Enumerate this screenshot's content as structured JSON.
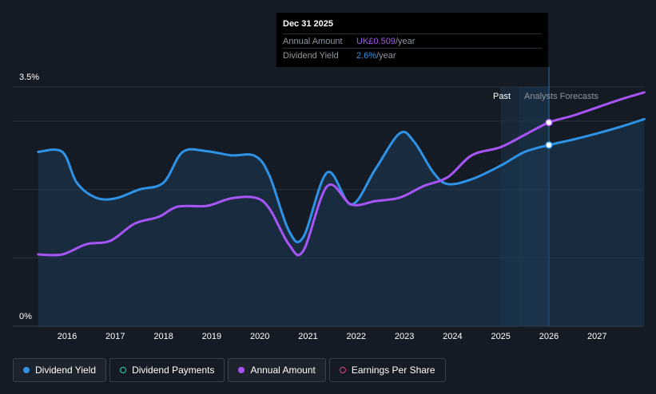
{
  "chart_data": {
    "type": "line",
    "y_axis": {
      "labels": [
        "3.5%",
        "0%"
      ],
      "ylim": [
        0,
        3.5
      ],
      "unit": "%"
    },
    "x_axis": {
      "ticks": [
        "2016",
        "2017",
        "2018",
        "2019",
        "2020",
        "2021",
        "2022",
        "2023",
        "2024",
        "2025",
        "2026",
        "2027"
      ]
    },
    "regions": {
      "past_label": "Past",
      "forecast_label": "Analysts Forecasts",
      "forecast_start": 2025.38
    },
    "series": [
      {
        "name": "Dividend Yield",
        "color": "#2e93e6",
        "points": [
          [
            2015.4,
            2.55
          ],
          [
            2015.9,
            2.55
          ],
          [
            2016.2,
            2.1
          ],
          [
            2016.6,
            1.88
          ],
          [
            2017.0,
            1.87
          ],
          [
            2017.5,
            2.0
          ],
          [
            2018.0,
            2.1
          ],
          [
            2018.4,
            2.55
          ],
          [
            2018.9,
            2.56
          ],
          [
            2019.4,
            2.5
          ],
          [
            2019.9,
            2.49
          ],
          [
            2020.2,
            2.2
          ],
          [
            2020.6,
            1.4
          ],
          [
            2020.9,
            1.3
          ],
          [
            2021.4,
            2.25
          ],
          [
            2021.9,
            1.78
          ],
          [
            2022.4,
            2.3
          ],
          [
            2022.9,
            2.82
          ],
          [
            2023.2,
            2.7
          ],
          [
            2023.6,
            2.25
          ],
          [
            2023.9,
            2.08
          ],
          [
            2024.4,
            2.15
          ],
          [
            2025.0,
            2.35
          ],
          [
            2025.5,
            2.55
          ],
          [
            2026.0,
            2.65
          ],
          [
            2026.5,
            2.73
          ],
          [
            2027.0,
            2.82
          ],
          [
            2027.5,
            2.92
          ],
          [
            2027.98,
            3.03
          ]
        ]
      },
      {
        "name": "Annual Amount",
        "color": "#a855f7",
        "points": [
          [
            2015.4,
            1.05
          ],
          [
            2015.9,
            1.05
          ],
          [
            2016.4,
            1.2
          ],
          [
            2016.9,
            1.25
          ],
          [
            2017.4,
            1.5
          ],
          [
            2017.9,
            1.6
          ],
          [
            2018.3,
            1.75
          ],
          [
            2018.9,
            1.76
          ],
          [
            2019.4,
            1.87
          ],
          [
            2019.9,
            1.88
          ],
          [
            2020.2,
            1.72
          ],
          [
            2020.6,
            1.2
          ],
          [
            2020.9,
            1.1
          ],
          [
            2021.4,
            2.05
          ],
          [
            2021.9,
            1.78
          ],
          [
            2022.4,
            1.83
          ],
          [
            2022.9,
            1.88
          ],
          [
            2023.4,
            2.05
          ],
          [
            2023.9,
            2.18
          ],
          [
            2024.4,
            2.5
          ],
          [
            2025.0,
            2.62
          ],
          [
            2025.5,
            2.8
          ],
          [
            2026.0,
            2.98
          ],
          [
            2026.5,
            3.08
          ],
          [
            2027.0,
            3.2
          ],
          [
            2027.5,
            3.32
          ],
          [
            2027.98,
            3.42
          ]
        ]
      }
    ],
    "highlight_x": 2026.0
  },
  "tooltip": {
    "date": "Dec 31 2025",
    "rows": [
      {
        "label": "Annual Amount",
        "value": "UK£0.509",
        "suffix": "/year",
        "color": "#a855f7"
      },
      {
        "label": "Dividend Yield",
        "value": "2.6%",
        "suffix": "/year",
        "color": "#2e93e6"
      }
    ]
  },
  "legend": [
    {
      "label": "Dividend Yield",
      "color": "#2e93e6",
      "filled": true,
      "active": true
    },
    {
      "label": "Dividend Payments",
      "color": "#2dd4bf",
      "filled": false,
      "active": false
    },
    {
      "label": "Annual Amount",
      "color": "#a855f7",
      "filled": true,
      "active": true
    },
    {
      "label": "Earnings Per Share",
      "color": "#e0457b",
      "filled": false,
      "active": false
    }
  ]
}
